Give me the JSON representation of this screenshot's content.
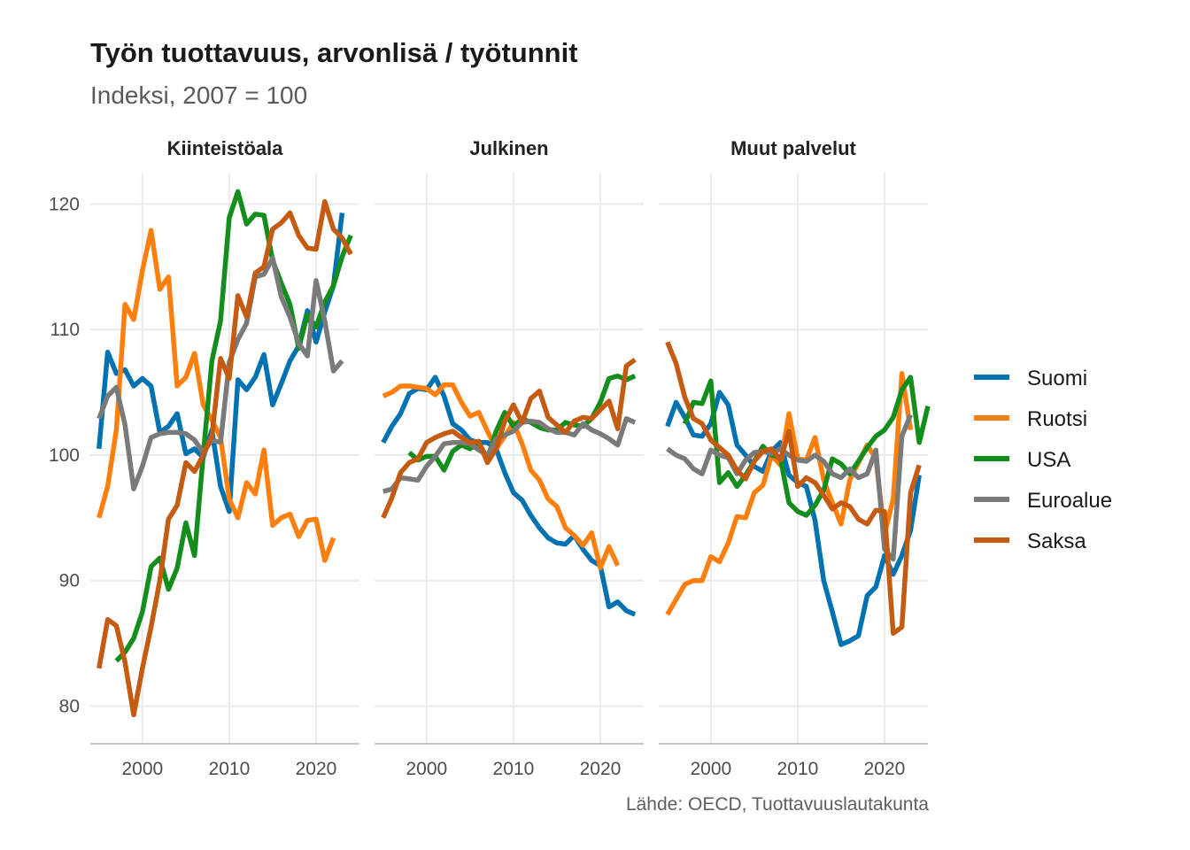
{
  "title": "Työn tuottavuus, arvonlisä / työtunnit",
  "subtitle": "Indeksi, 2007 = 100",
  "caption": "Lähde: OECD, Tuottavuuslautakunta",
  "colors": {
    "Suomi": "#0072b2",
    "Ruotsi": "#ff7f0e",
    "USA": "#138d1b",
    "Euroalue": "#7a7a7a",
    "Saksa": "#c55a11",
    "grid": "#ebebeb",
    "axis": "#b3b3b3"
  },
  "chart_data": {
    "type": "line",
    "facets": [
      "Kiinteistöala",
      "Julkinen",
      "Muut palvelut"
    ],
    "legend": [
      "Suomi",
      "Ruotsi",
      "USA",
      "Euroalue",
      "Saksa"
    ],
    "legend_position": "right",
    "xlim": [
      1994,
      2025
    ],
    "ylim": [
      77,
      122.5
    ],
    "xticks": [
      2000,
      2010,
      2020
    ],
    "yticks": [
      80,
      90,
      100,
      110,
      120
    ],
    "grid": true,
    "panels": [
      {
        "facet": "Kiinteistöala",
        "series": [
          {
            "name": "Suomi",
            "start": 1995,
            "values": [
              100.5,
              108.2,
              106.5,
              106.8,
              105.5,
              106.1,
              105.5,
              101.8,
              102.3,
              103.3,
              100.1,
              100.5,
              99.8,
              102.0,
              97.5,
              95.5,
              106.0,
              105.2,
              106.2,
              108.0,
              104.0,
              105.7,
              107.5,
              108.7,
              111.5,
              109.0,
              111.4,
              113.5,
              119.3
            ]
          },
          {
            "name": "Ruotsi",
            "start": 1995,
            "values": [
              95.0,
              97.5,
              102.0,
              112.0,
              110.8,
              114.7,
              117.9,
              113.2,
              114.2,
              105.5,
              106.2,
              108.1,
              104.0,
              102.8,
              101.4,
              96.5,
              95.0,
              97.8,
              96.9,
              100.4,
              94.4,
              95.0,
              95.3,
              93.5,
              94.8,
              94.9,
              91.6,
              93.4
            ]
          },
          {
            "name": "USA",
            "start": 1997,
            "values": [
              83.6,
              84.3,
              85.4,
              87.5,
              91.1,
              91.8,
              89.3,
              91.0,
              94.6,
              92.0,
              100.0,
              107.5,
              110.7,
              118.9,
              121.0,
              118.4,
              119.2,
              119.1,
              115.5,
              113.7,
              112.0,
              108.5,
              111.2,
              110.2,
              112.2,
              113.5,
              115.8,
              117.5
            ]
          },
          {
            "name": "Euroalue",
            "start": 1995,
            "values": [
              102.9,
              104.7,
              105.4,
              102.4,
              97.3,
              99.1,
              101.4,
              101.7,
              101.8,
              101.8,
              101.7,
              101.2,
              100.2,
              101.2,
              101.0,
              107.4,
              109.2,
              110.5,
              114.2,
              114.4,
              115.7,
              112.6,
              111.0,
              108.9,
              107.9,
              113.9,
              110.7,
              106.7,
              107.5
            ]
          },
          {
            "name": "Saksa",
            "start": 1995,
            "values": [
              83.0,
              86.9,
              86.4,
              83.5,
              79.3,
              83.0,
              86.3,
              90.0,
              94.9,
              96.0,
              99.4,
              98.7,
              100.0,
              101.5,
              107.7,
              106.1,
              112.7,
              111.0,
              114.5,
              115.0,
              118.0,
              118.5,
              119.3,
              117.5,
              116.5,
              116.4,
              120.2,
              118.0,
              117.3,
              116.0
            ]
          }
        ]
      },
      {
        "facet": "Julkinen",
        "series": [
          {
            "name": "Suomi",
            "start": 1995,
            "values": [
              101.0,
              102.3,
              103.3,
              104.9,
              105.3,
              105.2,
              106.2,
              104.7,
              102.5,
              102.0,
              101.2,
              101.0,
              101.0,
              100.5,
              98.6,
              97.0,
              96.4,
              95.2,
              94.2,
              93.4,
              93.0,
              92.9,
              93.6,
              92.5,
              91.6,
              91.2,
              87.9,
              88.3,
              87.6,
              87.3
            ]
          },
          {
            "name": "Ruotsi",
            "start": 1995,
            "values": [
              104.7,
              105.0,
              105.5,
              105.5,
              105.4,
              105.3,
              104.8,
              105.6,
              105.6,
              104.2,
              103.1,
              103.4,
              101.9,
              100.5,
              101.5,
              102.6,
              100.9,
              98.8,
              98.0,
              96.5,
              95.9,
              94.2,
              93.6,
              92.8,
              93.8,
              91.0,
              92.7,
              91.2
            ]
          },
          {
            "name": "USA",
            "start": 1998,
            "values": [
              100.2,
              99.6,
              99.9,
              99.9,
              98.8,
              100.3,
              100.8,
              100.5,
              101.0,
              99.7,
              101.9,
              103.4,
              102.3,
              102.9,
              102.6,
              102.2,
              102.0,
              102.0,
              102.6,
              102.4,
              102.3,
              102.9,
              104.2,
              106.1,
              106.3,
              106.0,
              106.3
            ]
          },
          {
            "name": "Euroalue",
            "start": 1995,
            "values": [
              97.1,
              97.3,
              98.2,
              98.1,
              98.0,
              99.1,
              99.9,
              100.9,
              101.0,
              101.0,
              100.9,
              100.4,
              100.0,
              101.3,
              101.6,
              101.9,
              102.6,
              102.7,
              102.6,
              102.1,
              101.8,
              101.8,
              101.6,
              102.5,
              102.0,
              101.7,
              101.3,
              100.8,
              102.9,
              102.6
            ]
          },
          {
            "name": "Saksa",
            "start": 1995,
            "values": [
              95.0,
              96.6,
              98.6,
              99.4,
              99.7,
              101.0,
              101.4,
              101.7,
              101.9,
              101.4,
              101.0,
              101.1,
              99.4,
              100.5,
              102.7,
              104.0,
              102.6,
              104.5,
              105.1,
              103.0,
              102.4,
              101.8,
              102.7,
              103.0,
              102.9,
              103.6,
              104.3,
              102.1,
              107.1,
              107.6
            ]
          }
        ]
      },
      {
        "facet": "Muut palvelut",
        "series": [
          {
            "name": "Suomi",
            "start": 1995,
            "values": [
              102.3,
              104.2,
              103.0,
              101.6,
              101.5,
              102.5,
              105.0,
              104.0,
              100.8,
              100.0,
              99.1,
              98.7,
              100.3,
              101.0,
              98.4,
              97.8,
              97.5,
              94.8,
              90.0,
              87.5,
              84.9,
              85.2,
              85.6,
              88.8,
              89.5,
              92.0,
              90.5,
              92.0,
              94.0,
              98.4
            ]
          },
          {
            "name": "Ruotsi",
            "start": 1995,
            "values": [
              87.3,
              88.5,
              89.7,
              90.0,
              90.0,
              91.9,
              91.5,
              93.0,
              95.1,
              95.0,
              97.0,
              97.6,
              100.0,
              99.2,
              103.3,
              99.7,
              99.6,
              101.4,
              98.0,
              96.2,
              94.5,
              98.0,
              99.4,
              100.8,
              99.7,
              93.7,
              96.5,
              106.5,
              102.0
            ]
          },
          {
            "name": "USA",
            "start": 1997,
            "values": [
              102.5,
              104.2,
              104.1,
              105.9,
              97.8,
              98.6,
              97.5,
              98.4,
              99.5,
              100.7,
              100.0,
              99.8,
              96.2,
              95.5,
              95.2,
              96.0,
              97.2,
              99.7,
              99.3,
              98.5,
              99.5,
              100.6,
              101.5,
              102.0,
              103.0,
              105.2,
              106.2,
              101.0,
              103.9
            ]
          },
          {
            "name": "Euroalue",
            "start": 1995,
            "values": [
              100.5,
              100.0,
              99.7,
              98.9,
              98.5,
              100.4,
              100.0,
              99.8,
              98.5,
              99.6,
              100.2,
              100.3,
              100.1,
              100.5,
              100.0,
              99.6,
              99.5,
              100.0,
              99.5,
              98.5,
              98.2,
              98.9,
              98.2,
              98.5,
              100.4,
              92.5,
              91.7,
              101.5,
              103.2
            ]
          },
          {
            "name": "Saksa",
            "start": 1995,
            "values": [
              109.0,
              107.3,
              104.6,
              102.9,
              102.5,
              101.2,
              100.6,
              100.0,
              98.8,
              98.1,
              99.5,
              100.3,
              100.5,
              99.6,
              101.9,
              97.5,
              98.2,
              97.8,
              96.8,
              95.7,
              96.2,
              95.9,
              94.9,
              94.5,
              95.6,
              95.5,
              85.8,
              86.3,
              97.0,
              99.2
            ]
          }
        ]
      }
    ]
  }
}
